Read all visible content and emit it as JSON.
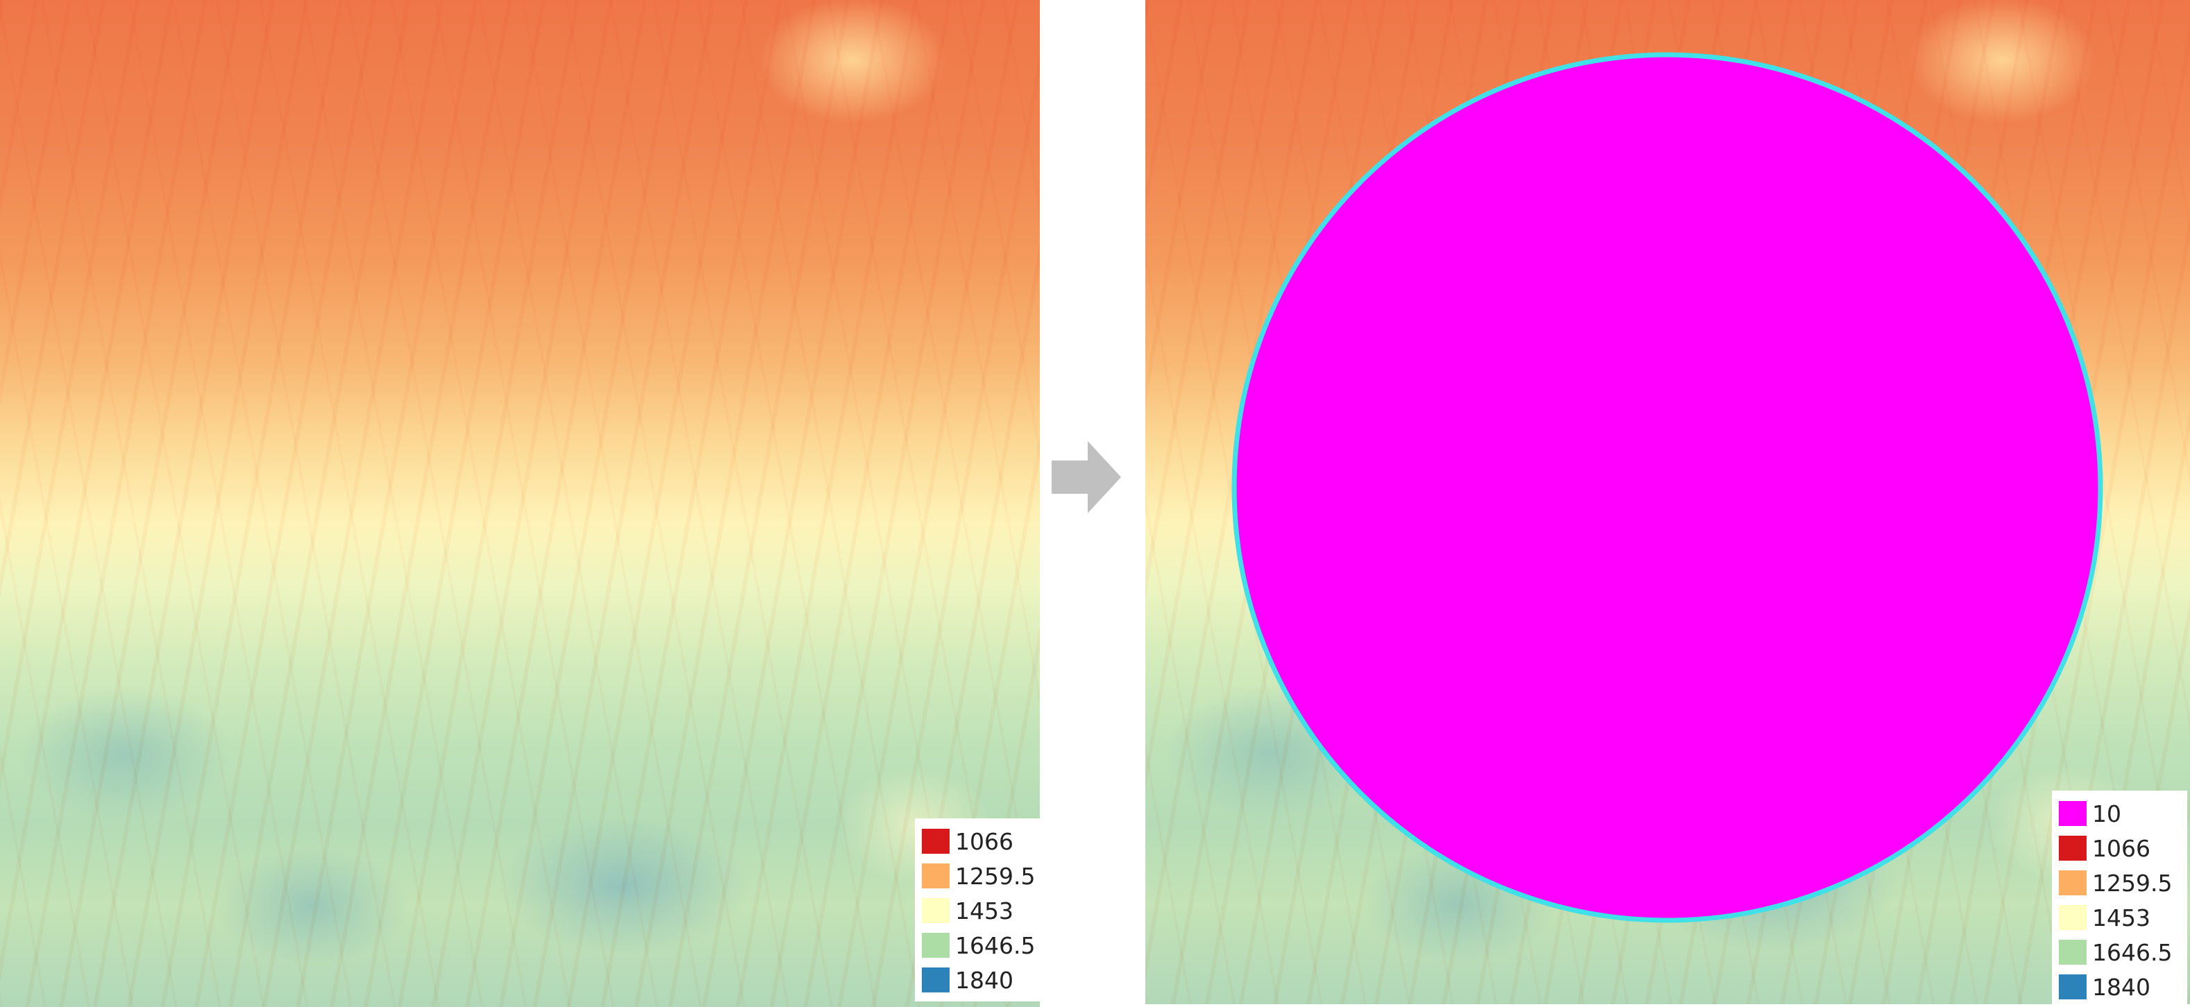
{
  "legend_left": {
    "items": [
      {
        "label": "1066",
        "color": "#d7191c"
      },
      {
        "label": "1259.5",
        "color": "#fdae61"
      },
      {
        "label": "1453",
        "color": "#ffffbf"
      },
      {
        "label": "1646.5",
        "color": "#abdda4"
      },
      {
        "label": "1840",
        "color": "#2b83ba"
      }
    ]
  },
  "legend_right": {
    "items": [
      {
        "label": "10",
        "color": "#ff00ff"
      },
      {
        "label": "1066",
        "color": "#d7191c"
      },
      {
        "label": "1259.5",
        "color": "#fdae61"
      },
      {
        "label": "1453",
        "color": "#ffffbf"
      },
      {
        "label": "1646.5",
        "color": "#abdda4"
      },
      {
        "label": "1840",
        "color": "#2b83ba"
      }
    ]
  },
  "buffer_fill_color": "#ff00ff",
  "buffer_outline_color": "#3fe0e8",
  "arrow_color": "#c0c0c0",
  "arrow_icon": "arrow-right-icon"
}
